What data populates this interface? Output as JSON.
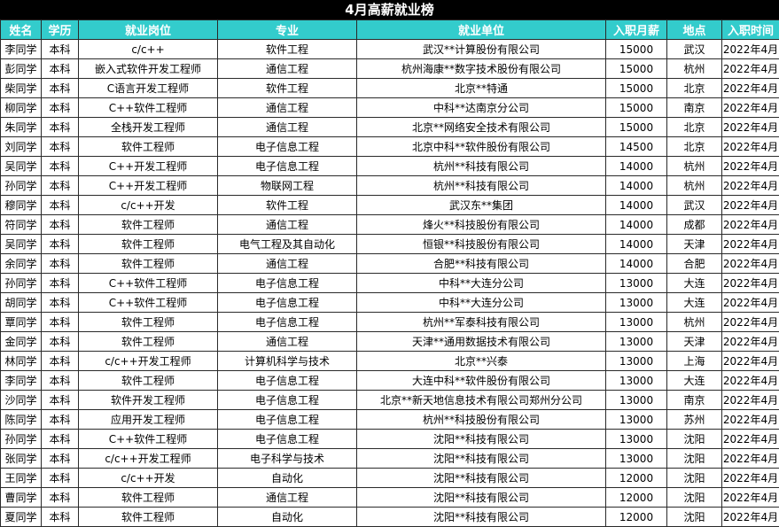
{
  "header": {
    "title": "4月高薪就业榜"
  },
  "table": {
    "columns": [
      "姓名",
      "学历",
      "就业岗位",
      "专业",
      "就业单位",
      "入职月薪",
      "地点",
      "入职时间"
    ],
    "rows": [
      [
        "李同学",
        "本科",
        "c/c++",
        "软件工程",
        "武汉**计算股份有限公司",
        "15000",
        "武汉",
        "2022年4月"
      ],
      [
        "彭同学",
        "本科",
        "嵌入式软件开发工程师",
        "通信工程",
        "杭州海康**数字技术股份有限公司",
        "15000",
        "杭州",
        "2022年4月"
      ],
      [
        "柴同学",
        "本科",
        "C语言开发工程师",
        "软件工程",
        "北京**特通",
        "15000",
        "北京",
        "2022年4月"
      ],
      [
        "柳同学",
        "本科",
        "C++软件工程师",
        "通信工程",
        "中科**达南京分公司",
        "15000",
        "南京",
        "2022年4月"
      ],
      [
        "朱同学",
        "本科",
        "全栈开发工程师",
        "通信工程",
        "北京**网络安全技术有限公司",
        "15000",
        "北京",
        "2022年4月"
      ],
      [
        "刘同学",
        "本科",
        "软件工程师",
        "电子信息工程",
        "北京中科**软件股份有限公司",
        "14500",
        "北京",
        "2022年4月"
      ],
      [
        "吴同学",
        "本科",
        "C++开发工程师",
        "电子信息工程",
        "杭州**科技有限公司",
        "14000",
        "杭州",
        "2022年4月"
      ],
      [
        "孙同学",
        "本科",
        "C++开发工程师",
        "物联网工程",
        "杭州**科技有限公司",
        "14000",
        "杭州",
        "2022年4月"
      ],
      [
        "穆同学",
        "本科",
        "c/c++开发",
        "软件工程",
        "武汉东**集团",
        "14000",
        "武汉",
        "2022年4月"
      ],
      [
        "符同学",
        "本科",
        "软件工程师",
        "通信工程",
        "烽火**科技股份有限公司",
        "14000",
        "成都",
        "2022年4月"
      ],
      [
        "吴同学",
        "本科",
        "软件工程师",
        "电气工程及其自动化",
        "恒银**科技股份有限公司",
        "14000",
        "天津",
        "2022年4月"
      ],
      [
        "余同学",
        "本科",
        "软件工程师",
        "通信工程",
        "合肥**科技有限公司",
        "14000",
        "合肥",
        "2022年4月"
      ],
      [
        "孙同学",
        "本科",
        "C++软件工程师",
        "电子信息工程",
        "中科**大连分公司",
        "13000",
        "大连",
        "2022年4月"
      ],
      [
        "胡同学",
        "本科",
        "C++软件工程师",
        "电子信息工程",
        "中科**大连分公司",
        "13000",
        "大连",
        "2022年4月"
      ],
      [
        "覃同学",
        "本科",
        "软件工程师",
        "电子信息工程",
        "杭州**军泰科技有限公司",
        "13000",
        "杭州",
        "2022年4月"
      ],
      [
        "金同学",
        "本科",
        "软件工程师",
        "通信工程",
        "天津**通用数据技术有限公司",
        "13000",
        "天津",
        "2022年4月"
      ],
      [
        "林同学",
        "本科",
        "c/c++开发工程师",
        "计算机科学与技术",
        "北京**兴泰",
        "13000",
        "上海",
        "2022年4月"
      ],
      [
        "李同学",
        "本科",
        "软件工程师",
        "电子信息工程",
        "大连中科**软件股份有限公司",
        "13000",
        "大连",
        "2022年4月"
      ],
      [
        "沙同学",
        "本科",
        "软件开发工程师",
        "电子信息工程",
        "北京**新天地信息技术有限公司郑州分公司",
        "13000",
        "南京",
        "2022年4月"
      ],
      [
        "陈同学",
        "本科",
        "应用开发工程师",
        "电子信息工程",
        "杭州**科技股份有限公司",
        "13000",
        "苏州",
        "2022年4月"
      ],
      [
        "孙同学",
        "本科",
        "C++软件工程师",
        "电子信息工程",
        "沈阳**科技有限公司",
        "13000",
        "沈阳",
        "2022年4月"
      ],
      [
        "张同学",
        "本科",
        "c/c++开发工程师",
        "电子科学与技术",
        "沈阳**科技有限公司",
        "13000",
        "沈阳",
        "2022年4月"
      ],
      [
        "王同学",
        "本科",
        "c/c++开发",
        "自动化",
        "沈阳**科技有限公司",
        "12000",
        "沈阳",
        "2022年4月"
      ],
      [
        "曹同学",
        "本科",
        "软件工程师",
        "通信工程",
        "沈阳**科技有限公司",
        "12000",
        "沈阳",
        "2022年4月"
      ],
      [
        "夏同学",
        "本科",
        "软件工程师",
        "自动化",
        "沈阳**科技有限公司",
        "12000",
        "沈阳",
        "2022年4月"
      ]
    ]
  }
}
